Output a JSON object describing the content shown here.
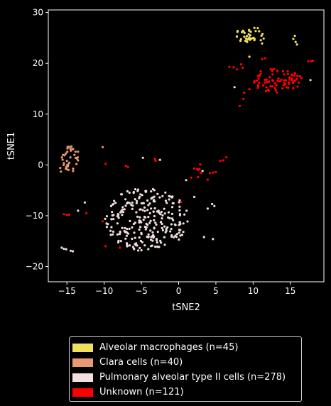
{
  "chart_data": {
    "type": "scatter",
    "xlabel": "tSNE2",
    "ylabel": "tSNE1",
    "xlim": [
      -17.5,
      19.5
    ],
    "ylim": [
      -23,
      30.5
    ],
    "xticks": [
      -15,
      -10,
      -5,
      0,
      5,
      10,
      15
    ],
    "yticks": [
      -20,
      -10,
      0,
      10,
      20,
      30
    ],
    "grid": false,
    "legend_position": "below",
    "background": "#000000",
    "series": [
      {
        "name": "Alveolar macrophages (n=45)",
        "color": "#f0e060",
        "cluster": {
          "cx": 9.7,
          "cy": 25.6,
          "rx": 2.1,
          "ry": 1.6,
          "n": 38
        },
        "points": [
          [
            15.4,
            24.8
          ],
          [
            15.7,
            24.2
          ],
          [
            15.6,
            25.4
          ],
          [
            9.5,
            21.3
          ],
          [
            17.7,
            16.7
          ],
          [
            11.2,
            23.9
          ],
          [
            15.9,
            23.7
          ]
        ]
      },
      {
        "name": "Clara cells (n=40)",
        "color": "#e89a72",
        "cluster": {
          "cx": -14.5,
          "cy": 1.3,
          "rx": 1.2,
          "ry": 2.6,
          "n": 37
        },
        "points": [
          [
            -10.2,
            3.5
          ],
          [
            -15.8,
            -1.3
          ],
          [
            -15.9,
            -0.6
          ]
        ]
      },
      {
        "name": "Pulmonary alveolar type II cells (n=278)",
        "color": "#f2dede",
        "cluster": {
          "cx": -4.3,
          "cy": -10.7,
          "rx": 5.6,
          "ry": 6.3,
          "n": 262
        },
        "points": [
          [
            -15.7,
            -16.3
          ],
          [
            -15.4,
            -16.5
          ],
          [
            -15.1,
            -16.6
          ],
          [
            -14.5,
            -16.9
          ],
          [
            -14.2,
            -17.0
          ],
          [
            4.5,
            -7.7
          ],
          [
            4.8,
            -8.1
          ],
          [
            -4.8,
            1.4
          ],
          [
            -2.5,
            1.0
          ],
          [
            3.2,
            -1.2
          ],
          [
            7.5,
            15.3
          ],
          [
            4.6,
            -14.6
          ],
          [
            3.4,
            -14.2
          ],
          [
            3.9,
            -8.6
          ],
          [
            -12.6,
            -7.4
          ],
          [
            -13.5,
            -9.0
          ],
          [
            1.0,
            -3.0
          ],
          [
            2.1,
            -6.3
          ]
        ]
      },
      {
        "name": "Unknown (n=121)",
        "color": "#ff0000",
        "cluster": {
          "cx": 13.3,
          "cy": 16.6,
          "rx": 3.4,
          "ry": 2.5,
          "n": 78
        },
        "points": [
          [
            8.2,
            11.6
          ],
          [
            8.7,
            13.0
          ],
          [
            8.8,
            14.2
          ],
          [
            9.5,
            14.9
          ],
          [
            7.4,
            19.2
          ],
          [
            6.8,
            19.3
          ],
          [
            7.8,
            18.8
          ],
          [
            8.4,
            19.8
          ],
          [
            8.6,
            19.1
          ],
          [
            11.0,
            18.4
          ],
          [
            11.2,
            20.8
          ],
          [
            11.6,
            21.0
          ],
          [
            17.4,
            20.4
          ],
          [
            17.8,
            20.4
          ],
          [
            18.0,
            20.5
          ],
          [
            6.4,
            1.5
          ],
          [
            6.0,
            0.9
          ],
          [
            5.6,
            0.8
          ],
          [
            -9.8,
            0.2
          ],
          [
            -7.1,
            -0.2
          ],
          [
            -6.8,
            -0.4
          ],
          [
            -3.2,
            1.2
          ],
          [
            -3.1,
            0.8
          ],
          [
            2.1,
            -0.7
          ],
          [
            2.5,
            -0.8
          ],
          [
            2.8,
            -0.8
          ],
          [
            2.9,
            0.1
          ],
          [
            2.6,
            -1.0
          ],
          [
            3.0,
            -1.6
          ],
          [
            4.2,
            -1.6
          ],
          [
            4.6,
            -1.5
          ],
          [
            5.0,
            -1.4
          ],
          [
            2.6,
            -2.4
          ],
          [
            1.7,
            -2.5
          ],
          [
            3.9,
            -2.9
          ],
          [
            -15.4,
            -9.7
          ],
          [
            -15.0,
            -9.8
          ],
          [
            -14.7,
            -9.8
          ],
          [
            -12.4,
            -9.5
          ],
          [
            -10.2,
            -11.1
          ],
          [
            -9.8,
            -16.0
          ],
          [
            -7.9,
            -16.3
          ],
          [
            0.3,
            -7.3
          ]
        ]
      }
    ]
  },
  "legend": [
    {
      "label": "Alveolar macrophages (n=45)",
      "color": "#f0e060"
    },
    {
      "label": "Clara cells (n=40)",
      "color": "#e89a72"
    },
    {
      "label": "Pulmonary alveolar type II cells (n=278)",
      "color": "#f2dede"
    },
    {
      "label": "Unknown (n=121)",
      "color": "#ff0000"
    }
  ]
}
